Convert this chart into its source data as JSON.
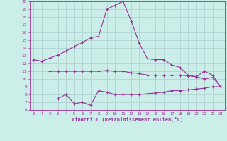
{
  "xlabel": "Windchill (Refroidissement éolien,°C)",
  "background_color": "#cceee8",
  "grid_color": "#aacccc",
  "line_color": "#993399",
  "x_values": [
    0,
    1,
    2,
    3,
    4,
    5,
    6,
    7,
    8,
    9,
    10,
    11,
    12,
    13,
    14,
    15,
    16,
    17,
    18,
    19,
    20,
    21,
    22,
    23
  ],
  "line1": [
    12.5,
    12.3,
    12.7,
    13.1,
    13.6,
    14.2,
    14.7,
    15.3,
    15.5,
    19.0,
    19.5,
    20.0,
    17.5,
    14.6,
    12.6,
    12.5,
    12.5,
    11.8,
    11.5,
    10.5,
    10.3,
    11.0,
    10.5,
    9.0
  ],
  "line2": [
    null,
    null,
    11.0,
    11.0,
    11.0,
    11.0,
    11.0,
    11.0,
    11.0,
    11.1,
    11.0,
    11.0,
    10.8,
    10.7,
    10.5,
    10.5,
    10.5,
    10.5,
    10.5,
    10.4,
    10.3,
    10.0,
    10.2,
    9.0
  ],
  "line3": [
    null,
    null,
    null,
    7.5,
    8.0,
    6.8,
    7.0,
    6.6,
    8.5,
    8.3,
    8.0,
    8.0,
    8.0,
    8.0,
    8.1,
    8.2,
    8.3,
    8.5,
    8.5,
    8.6,
    8.7,
    8.8,
    9.0,
    9.0
  ],
  "ylim": [
    6,
    20
  ],
  "xlim": [
    -0.5,
    23.5
  ],
  "yticks": [
    6,
    7,
    8,
    9,
    10,
    11,
    12,
    13,
    14,
    15,
    16,
    17,
    18,
    19,
    20
  ],
  "xticks": [
    0,
    1,
    2,
    3,
    4,
    5,
    6,
    7,
    8,
    9,
    10,
    11,
    12,
    13,
    14,
    15,
    16,
    17,
    18,
    19,
    20,
    21,
    22,
    23
  ]
}
